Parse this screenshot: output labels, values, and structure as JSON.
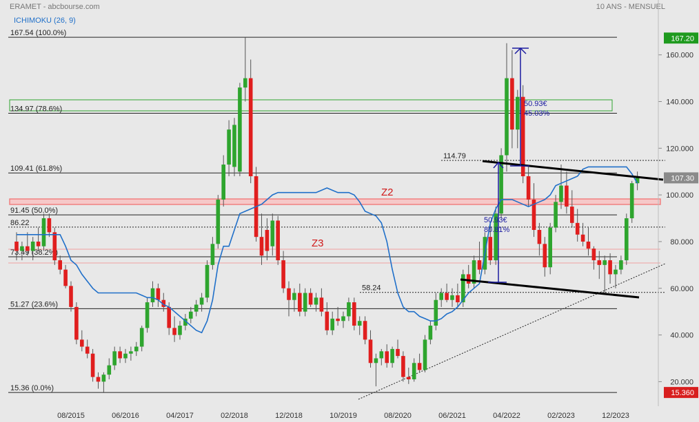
{
  "chart_data": {
    "type": "candlestick",
    "title": "ERAMET - abcbourse.com",
    "subtitle": "10 ANS - MENSUEL",
    "categories": [
      null,
      null,
      null,
      null,
      null,
      null,
      null,
      null,
      null,
      null,
      "08/2015",
      null,
      null,
      null,
      null,
      null,
      null,
      null,
      null,
      null,
      "06/2016",
      null,
      null,
      null,
      null,
      null,
      null,
      null,
      null,
      null,
      "04/2017",
      null,
      null,
      null,
      null,
      null,
      null,
      null,
      null,
      null,
      "02/2018",
      null,
      null,
      null,
      null,
      null,
      null,
      null,
      null,
      null,
      "12/2018",
      null,
      null,
      null,
      null,
      null,
      null,
      null,
      null,
      null,
      "10/2019",
      null,
      null,
      null,
      null,
      null,
      null,
      null,
      null,
      null,
      "08/2020",
      null,
      null,
      null,
      null,
      null,
      null,
      null,
      null,
      null,
      "06/2021",
      null,
      null,
      null,
      null,
      null,
      null,
      null,
      null,
      null,
      "04/2022",
      null,
      null,
      null,
      null,
      null,
      null,
      null,
      null,
      null,
      "02/2023",
      null,
      null,
      null,
      null,
      null,
      null,
      null,
      null,
      null,
      "12/2023",
      null,
      null,
      null,
      null
    ],
    "up_color": "#2ea52e",
    "down_color": "#e01e1e",
    "open": [
      80,
      76,
      78,
      76,
      80,
      78,
      90,
      84,
      72,
      68,
      61,
      52,
      38,
      35,
      32,
      22,
      20,
      23,
      27,
      33,
      30,
      32,
      33,
      35,
      43,
      54,
      60,
      55,
      52,
      43,
      40,
      44,
      47,
      50,
      53,
      56,
      70,
      79,
      98,
      113,
      112,
      110,
      146,
      150,
      108,
      82,
      85,
      78,
      89,
      72,
      60,
      55,
      58,
      50,
      58,
      53,
      56,
      50,
      42,
      47,
      46,
      48,
      54,
      44,
      46,
      38,
      28,
      30,
      33,
      28,
      34,
      31,
      22,
      21,
      28,
      25,
      38,
      44,
      55,
      58,
      55,
      57,
      54,
      66,
      62,
      72,
      68,
      82,
      72,
      92,
      117,
      150,
      128,
      142,
      108,
      98,
      85,
      79,
      69,
      86,
      97,
      104,
      95,
      88,
      83,
      80,
      77,
      72,
      70,
      72,
      66,
      68,
      72,
      90,
      105
    ],
    "high": [
      84,
      80,
      84,
      82,
      86,
      92,
      92,
      86,
      74,
      70,
      63,
      54,
      42,
      38,
      34,
      24,
      24,
      30,
      35,
      35,
      34,
      35,
      37,
      44,
      56,
      63,
      62,
      58,
      54,
      48,
      46,
      49,
      52,
      55,
      58,
      72,
      82,
      100,
      117,
      132,
      133,
      148,
      167.5,
      158,
      112,
      92,
      90,
      92,
      91,
      76,
      63,
      60,
      62,
      60,
      60,
      58,
      60,
      54,
      50,
      52,
      50,
      56,
      56,
      48,
      48,
      42,
      32,
      34,
      36,
      35,
      38,
      33,
      26,
      30,
      32,
      40,
      46,
      58,
      60,
      62,
      60,
      62,
      68,
      70,
      74,
      80,
      84,
      88,
      95,
      120,
      165,
      162,
      145,
      147,
      112,
      105,
      88,
      82,
      88,
      100,
      113,
      110,
      102,
      94,
      88,
      86,
      78,
      76,
      74,
      75,
      70,
      74,
      92,
      106,
      110
    ],
    "low": [
      72,
      72,
      74,
      72,
      76,
      76,
      82,
      70,
      66,
      60,
      50,
      36,
      33,
      30,
      20,
      17,
      15.4,
      21,
      25,
      28,
      28,
      29,
      31,
      33,
      41,
      52,
      52,
      50,
      40,
      37,
      38,
      42,
      45,
      48,
      50,
      54,
      68,
      77,
      95,
      108,
      108,
      108,
      140,
      105,
      80,
      70,
      72,
      74,
      70,
      58,
      48,
      50,
      48,
      48,
      52,
      50,
      48,
      40,
      40,
      44,
      43,
      46,
      42,
      40,
      36,
      26,
      18,
      27,
      26,
      26,
      30,
      20,
      19,
      20,
      24,
      24,
      36,
      42,
      52,
      54,
      52,
      52,
      52,
      60,
      60,
      66,
      66,
      70,
      70,
      90,
      110,
      120,
      120,
      105,
      95,
      82,
      74,
      65,
      66,
      84,
      94,
      92,
      86,
      80,
      78,
      74,
      68,
      64,
      58,
      62,
      60,
      66,
      70,
      88,
      102
    ],
    "close": [
      76,
      78,
      76,
      80,
      78,
      90,
      84,
      72,
      68,
      61,
      52,
      38,
      35,
      32,
      22,
      20,
      23,
      27,
      33,
      30,
      32,
      33,
      35,
      43,
      54,
      60,
      55,
      52,
      43,
      40,
      44,
      47,
      50,
      53,
      56,
      70,
      79,
      98,
      113,
      128,
      130,
      146,
      150,
      108,
      82,
      74,
      76,
      89,
      72,
      60,
      55,
      58,
      50,
      58,
      53,
      56,
      50,
      42,
      47,
      46,
      48,
      54,
      44,
      46,
      38,
      28,
      30,
      33,
      28,
      34,
      31,
      22,
      21,
      28,
      25,
      38,
      44,
      55,
      58,
      55,
      57,
      54,
      66,
      62,
      72,
      68,
      82,
      72,
      92,
      117,
      150,
      128,
      142,
      108,
      98,
      85,
      79,
      69,
      86,
      97,
      104,
      95,
      88,
      83,
      80,
      77,
      72,
      70,
      72,
      66,
      68,
      72,
      90,
      105,
      107.3
    ],
    "series": [
      {
        "name": "ICHIMOKU (26, 9)",
        "color": "#1f6fc9",
        "values": [
          83,
          83,
          83,
          83,
          83,
          83,
          83,
          83,
          83,
          78,
          72,
          70,
          66,
          63,
          60,
          58,
          58,
          58,
          58,
          58,
          58,
          58,
          58,
          57,
          56,
          56,
          55,
          53,
          52,
          50,
          48,
          46,
          44,
          42,
          41,
          46,
          55,
          70,
          78,
          78,
          85,
          92,
          93,
          94,
          95,
          96,
          98,
          100,
          101,
          101,
          101,
          101,
          101,
          101,
          101,
          101,
          102,
          103,
          102,
          101,
          101,
          101,
          100,
          97,
          93,
          92,
          91,
          88,
          80,
          68,
          58,
          52,
          50,
          50,
          48,
          47,
          46,
          46,
          47,
          49,
          50,
          52,
          55,
          58,
          60,
          62,
          75,
          88,
          94,
          98,
          98,
          98,
          97,
          96,
          95,
          96,
          97,
          98,
          100,
          104,
          105,
          106,
          107,
          108,
          111,
          112,
          112,
          112,
          112,
          112,
          112,
          112,
          112,
          109,
          105
        ]
      }
    ],
    "ylim": [
      9.5,
      183.5
    ],
    "yticks": [
      {
        "value": 20,
        "label": "20.000"
      },
      {
        "value": 40,
        "label": "40.000"
      },
      {
        "value": 60,
        "label": "60.000"
      },
      {
        "value": 80,
        "label": "80.000"
      },
      {
        "value": 100,
        "label": "100.000"
      },
      {
        "value": 120,
        "label": "120.000"
      },
      {
        "value": 140,
        "label": "140.000"
      },
      {
        "value": 160,
        "label": "160.000"
      }
    ],
    "fib_levels": [
      {
        "value": 167.54,
        "label": "167.54 (100.0%)"
      },
      {
        "value": 134.97,
        "label": "134.97 (78.6%)"
      },
      {
        "value": 109.41,
        "label": "109.41 (61.8%)"
      },
      {
        "value": 91.45,
        "label": "91.45 (50.0%)"
      },
      {
        "value": 73.49,
        "label": "73.49 (38.2%)"
      },
      {
        "value": 51.27,
        "label": "51.27 (23.6%)"
      },
      {
        "value": 15.36,
        "label": "15.36 (0.0%)"
      }
    ],
    "levels": [
      {
        "value": 114.79,
        "label": "114.79"
      },
      {
        "value": 86.22,
        "label": "86.22"
      },
      {
        "value": 58.24,
        "label": "58.24"
      }
    ],
    "price_tags": [
      {
        "value": 167.2,
        "label": "167.20",
        "color": "#1e9a1e"
      },
      {
        "value": 107.3,
        "label": "107.30",
        "color": "#8a8a8a"
      },
      {
        "value": 15.36,
        "label": "15.360",
        "color": "#d81e1e"
      }
    ],
    "annotations": [
      "50.93€",
      "45.03%",
      "50.93€",
      "80.81%"
    ],
    "zones": [
      "Z2",
      "Z3"
    ]
  }
}
